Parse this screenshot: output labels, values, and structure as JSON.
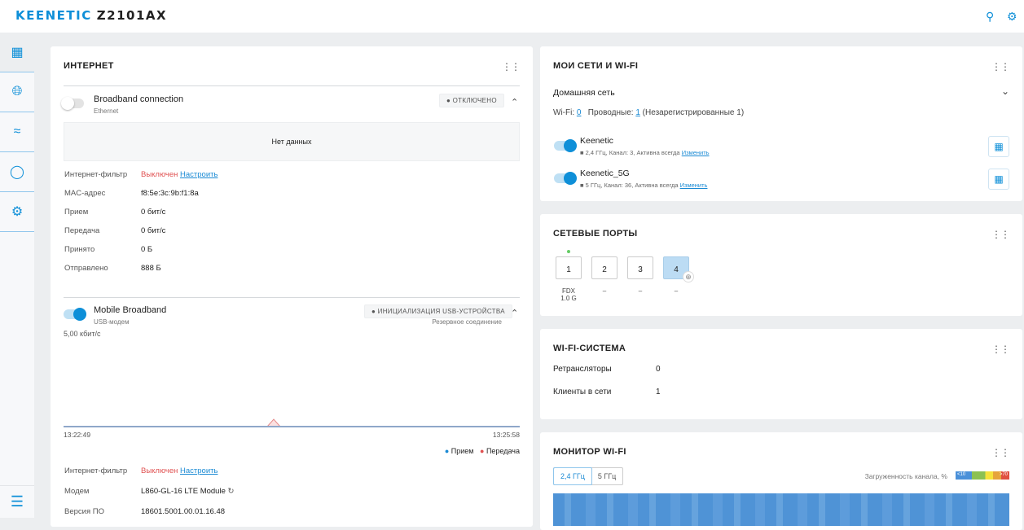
{
  "header": {
    "brand": "KEENETIC",
    "model": "Z2101AX",
    "icons": [
      "search-icon",
      "gear-icon"
    ]
  },
  "sidebar": {
    "items": [
      "dashboard-icon",
      "globe-icon",
      "wifi-icon",
      "shield-icon",
      "gear-icon"
    ],
    "menu": "menu-icon"
  },
  "internet": {
    "title": "ИНТЕРНЕТ",
    "broadband": {
      "name": "Broadband connection",
      "type": "Ethernet",
      "status": "ОТКЛЮЧЕНО",
      "enabled": false,
      "no_data": "Нет данных",
      "rows": [
        {
          "label": "Интернет-фильтр",
          "value": "Выключен",
          "link": "Настроить"
        },
        {
          "label": "MAC-адрес",
          "value": "f8:5e:3c:9b:f1:8a"
        },
        {
          "label": "Прием",
          "value": "0 бит/с"
        },
        {
          "label": "Передача",
          "value": "0 бит/с"
        },
        {
          "label": "Принято",
          "value": "0 Б"
        },
        {
          "label": "Отправлено",
          "value": "888 Б"
        }
      ]
    },
    "mobile": {
      "name": "Mobile Broadband",
      "type": "USB-модем",
      "status": "ИНИЦИАЛИЗАЦИЯ USB-УСТРОЙСТВА",
      "role": "Резервное соединение",
      "enabled": true,
      "rate": "5,00 кбит/с",
      "chart": {
        "t_start": "13:22:49",
        "t_end": "13:25:58",
        "legend_rx": "Прием",
        "legend_tx": "Передача",
        "rx_color": "#1a8ad4",
        "tx_color": "#e05252"
      },
      "rows": [
        {
          "label": "Интернет-фильтр",
          "value": "Выключен",
          "link": "Настроить"
        },
        {
          "label": "Модем",
          "value": "L860-GL-16 LTE Module"
        },
        {
          "label": "Версия ПО",
          "value": "18601.5001.00.01.16.48"
        }
      ]
    }
  },
  "networks": {
    "title": "МОИ СЕТИ И WI-FI",
    "segment": "Домашняя сеть",
    "wifi_label": "Wi-Fi:",
    "wifi_count": "0",
    "wired_label": "Проводные:",
    "wired_count": "1",
    "unregistered": "(Незарегистрированные 1)",
    "ssids": [
      {
        "name": "Keenetic",
        "info": "2,4 ГГц,  Канал: 3, Активна всегда",
        "link": "Изменить"
      },
      {
        "name": "Keenetic_5G",
        "info": "5 ГГц,  Канал: 36, Активна всегда",
        "link": "Изменить"
      }
    ]
  },
  "ports": {
    "title": "СЕТЕВЫЕ ПОРТЫ",
    "items": [
      {
        "num": "1",
        "status": "FDX",
        "speed": "1.0 G",
        "active": true
      },
      {
        "num": "2",
        "status": "–"
      },
      {
        "num": "3",
        "status": "–"
      },
      {
        "num": "4",
        "status": "–",
        "wan": true
      }
    ]
  },
  "wifisystem": {
    "title": "WI-FI-СИСТЕМА",
    "rows": [
      {
        "label": "Ретрансляторы",
        "value": "0"
      },
      {
        "label": "Клиенты в сети",
        "value": "1"
      }
    ]
  },
  "monitor": {
    "title": "МОНИТОР WI-FI",
    "tabs": [
      "2,4 ГГц",
      "5 ГГц"
    ],
    "active_tab": "2,4 ГГц",
    "load_label": "Загруженность канала, %",
    "scale_low": "<10",
    "scale_high": ">70"
  }
}
